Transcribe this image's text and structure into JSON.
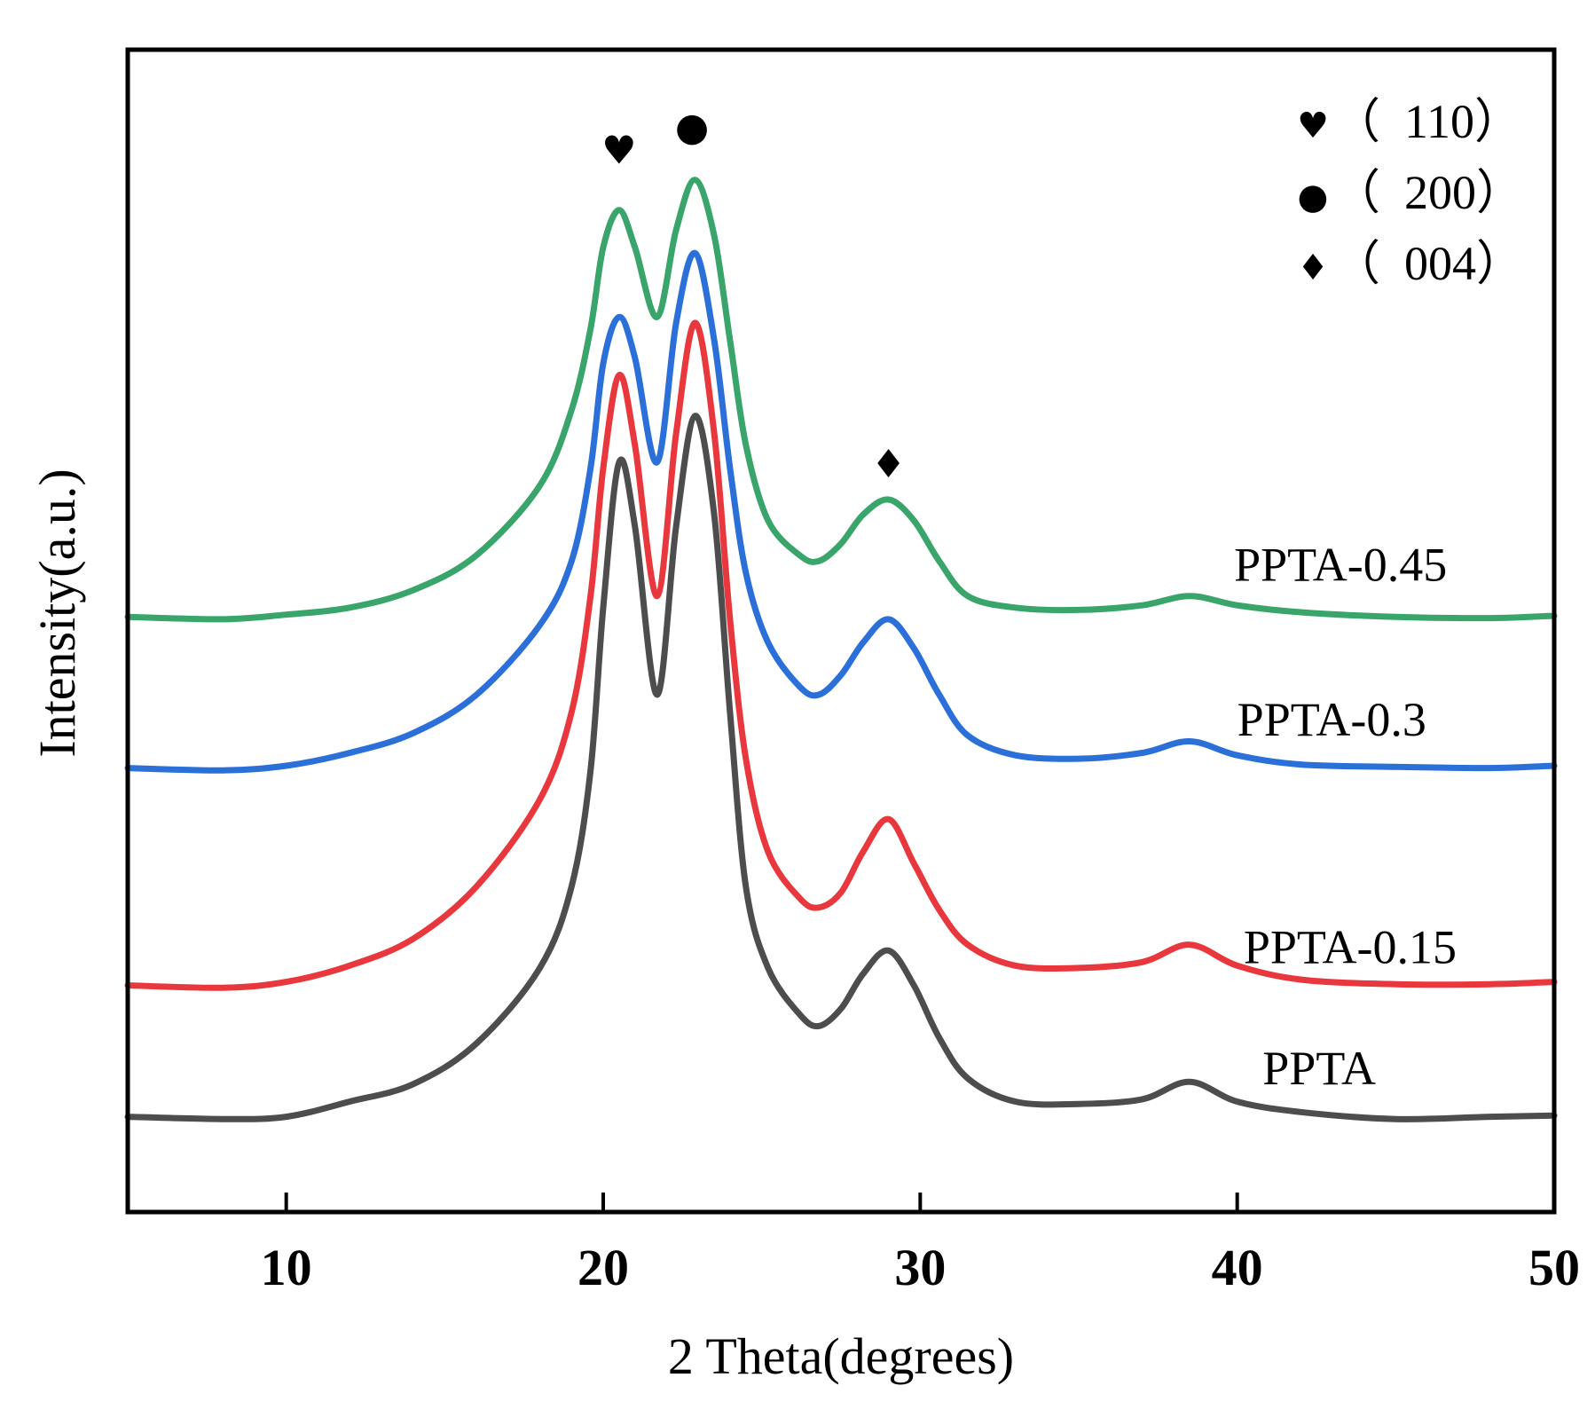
{
  "chart_data": {
    "type": "line",
    "title": "",
    "xlabel": "2 Theta(degrees)",
    "ylabel": "Intensity(a.u.)",
    "xlim": [
      5,
      50
    ],
    "ylim": [
      0,
      10
    ],
    "xticks": [
      10,
      20,
      30,
      40,
      50
    ],
    "y_ticks_labeled": false,
    "grid": false,
    "legend": {
      "placement": "top-right",
      "entries": [
        {
          "symbol": "♥",
          "label": "（  110）",
          "peak": "(110)"
        },
        {
          "symbol": "●",
          "label": "（  200）",
          "peak": "(200)"
        },
        {
          "symbol": "♦",
          "label": "（  004）",
          "peak": "(004)"
        }
      ]
    },
    "peak_markers": [
      {
        "symbol": "♥",
        "x": 20.5,
        "y": 9.02
      },
      {
        "symbol": "●",
        "x": 22.8,
        "y": 9.22
      },
      {
        "symbol": "♦",
        "x": 29.0,
        "y": 6.32
      }
    ],
    "series": [
      {
        "name": "PPTA",
        "color": "#4d4d4d",
        "label_at": {
          "x": 40.8,
          "y": 1.1
        },
        "points": [
          [
            5,
            0.82
          ],
          [
            8,
            0.8
          ],
          [
            10,
            0.82
          ],
          [
            12,
            0.95
          ],
          [
            14,
            1.1
          ],
          [
            16,
            1.45
          ],
          [
            18,
            2.1
          ],
          [
            19,
            2.8
          ],
          [
            19.6,
            3.8
          ],
          [
            20,
            5.2
          ],
          [
            20.5,
            6.45
          ],
          [
            21,
            5.9
          ],
          [
            21.7,
            4.45
          ],
          [
            22.3,
            5.9
          ],
          [
            22.9,
            6.85
          ],
          [
            23.5,
            6.0
          ],
          [
            24,
            4.3
          ],
          [
            24.5,
            2.8
          ],
          [
            25.2,
            2.1
          ],
          [
            26.2,
            1.7
          ],
          [
            26.8,
            1.6
          ],
          [
            27.5,
            1.75
          ],
          [
            28.2,
            2.05
          ],
          [
            29,
            2.25
          ],
          [
            29.8,
            1.95
          ],
          [
            30.6,
            1.5
          ],
          [
            31.5,
            1.15
          ],
          [
            33,
            0.95
          ],
          [
            35,
            0.93
          ],
          [
            37,
            0.97
          ],
          [
            38.5,
            1.12
          ],
          [
            40,
            0.95
          ],
          [
            42,
            0.86
          ],
          [
            45,
            0.8
          ],
          [
            48,
            0.82
          ],
          [
            50,
            0.83
          ]
        ]
      },
      {
        "name": "PPTA-0.15",
        "color": "#e8383d",
        "label_at": {
          "x": 40.2,
          "y": 2.14
        },
        "points": [
          [
            5,
            1.95
          ],
          [
            8,
            1.93
          ],
          [
            10,
            1.98
          ],
          [
            12,
            2.12
          ],
          [
            14,
            2.35
          ],
          [
            16,
            2.8
          ],
          [
            18,
            3.55
          ],
          [
            19,
            4.3
          ],
          [
            19.6,
            5.3
          ],
          [
            20,
            6.4
          ],
          [
            20.5,
            7.2
          ],
          [
            21,
            6.6
          ],
          [
            21.7,
            5.3
          ],
          [
            22.3,
            6.7
          ],
          [
            22.9,
            7.65
          ],
          [
            23.5,
            6.7
          ],
          [
            24,
            5.1
          ],
          [
            24.5,
            3.9
          ],
          [
            25.2,
            3.1
          ],
          [
            26.2,
            2.7
          ],
          [
            26.8,
            2.62
          ],
          [
            27.5,
            2.75
          ],
          [
            28.2,
            3.1
          ],
          [
            29,
            3.38
          ],
          [
            29.8,
            3.0
          ],
          [
            30.6,
            2.6
          ],
          [
            31.5,
            2.3
          ],
          [
            33,
            2.12
          ],
          [
            35,
            2.1
          ],
          [
            37,
            2.15
          ],
          [
            38.5,
            2.3
          ],
          [
            40,
            2.12
          ],
          [
            42,
            2.0
          ],
          [
            45,
            1.96
          ],
          [
            48,
            1.96
          ],
          [
            50,
            1.98
          ]
        ]
      },
      {
        "name": "PPTA-0.3",
        "color": "#2b6fd8",
        "label_at": {
          "x": 40.0,
          "y": 4.1
        },
        "points": [
          [
            5,
            3.82
          ],
          [
            8,
            3.8
          ],
          [
            10,
            3.84
          ],
          [
            12,
            3.95
          ],
          [
            14,
            4.12
          ],
          [
            16,
            4.45
          ],
          [
            18,
            5.05
          ],
          [
            19,
            5.6
          ],
          [
            19.6,
            6.4
          ],
          [
            20,
            7.3
          ],
          [
            20.5,
            7.7
          ],
          [
            21,
            7.35
          ],
          [
            21.7,
            6.45
          ],
          [
            22.3,
            7.65
          ],
          [
            22.9,
            8.25
          ],
          [
            23.5,
            7.5
          ],
          [
            24,
            6.4
          ],
          [
            24.5,
            5.5
          ],
          [
            25.2,
            4.9
          ],
          [
            26.2,
            4.52
          ],
          [
            26.8,
            4.45
          ],
          [
            27.5,
            4.62
          ],
          [
            28.2,
            4.9
          ],
          [
            29,
            5.1
          ],
          [
            29.8,
            4.85
          ],
          [
            30.6,
            4.45
          ],
          [
            31.5,
            4.1
          ],
          [
            33,
            3.93
          ],
          [
            35,
            3.9
          ],
          [
            37,
            3.95
          ],
          [
            38.5,
            4.05
          ],
          [
            40,
            3.93
          ],
          [
            42,
            3.85
          ],
          [
            45,
            3.83
          ],
          [
            48,
            3.82
          ],
          [
            50,
            3.84
          ]
        ]
      },
      {
        "name": "PPTA-0.45",
        "color": "#3aa56b",
        "label_at": {
          "x": 39.9,
          "y": 5.43
        },
        "points": [
          [
            5,
            5.12
          ],
          [
            8,
            5.1
          ],
          [
            10,
            5.14
          ],
          [
            12,
            5.2
          ],
          [
            14,
            5.35
          ],
          [
            16,
            5.65
          ],
          [
            18,
            6.25
          ],
          [
            19,
            6.9
          ],
          [
            19.6,
            7.6
          ],
          [
            20,
            8.3
          ],
          [
            20.5,
            8.62
          ],
          [
            21,
            8.3
          ],
          [
            21.7,
            7.7
          ],
          [
            22.3,
            8.45
          ],
          [
            22.9,
            8.88
          ],
          [
            23.5,
            8.4
          ],
          [
            24,
            7.5
          ],
          [
            24.5,
            6.6
          ],
          [
            25.2,
            5.95
          ],
          [
            26.2,
            5.65
          ],
          [
            26.8,
            5.6
          ],
          [
            27.5,
            5.75
          ],
          [
            28.2,
            6.0
          ],
          [
            29,
            6.13
          ],
          [
            29.8,
            5.95
          ],
          [
            30.6,
            5.6
          ],
          [
            31.5,
            5.3
          ],
          [
            33,
            5.2
          ],
          [
            35,
            5.18
          ],
          [
            37,
            5.22
          ],
          [
            38.5,
            5.3
          ],
          [
            40,
            5.22
          ],
          [
            42,
            5.16
          ],
          [
            45,
            5.12
          ],
          [
            48,
            5.11
          ],
          [
            50,
            5.13
          ]
        ]
      }
    ]
  }
}
